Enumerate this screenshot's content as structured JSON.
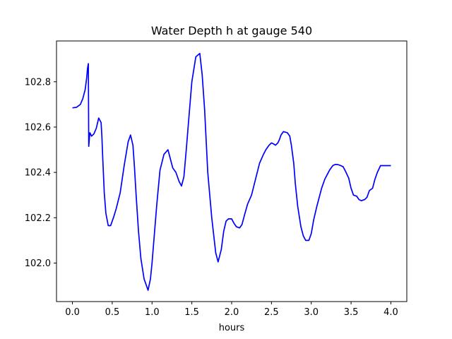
{
  "chart_data": {
    "type": "line",
    "title": "Water Depth h at gauge 540",
    "xlabel": "hours",
    "ylabel": "",
    "xlim": [
      -0.2,
      4.2
    ],
    "ylim": [
      101.83,
      102.98
    ],
    "grid": false,
    "xticks": [
      0.0,
      0.5,
      1.0,
      1.5,
      2.0,
      2.5,
      3.0,
      3.5,
      4.0
    ],
    "xtick_labels": [
      "0.0",
      "0.5",
      "1.0",
      "1.5",
      "2.0",
      "2.5",
      "3.0",
      "3.5",
      "4.0"
    ],
    "yticks": [
      102.0,
      102.2,
      102.4,
      102.6,
      102.8
    ],
    "ytick_labels": [
      "102.0",
      "102.2",
      "102.4",
      "102.6",
      "102.8"
    ],
    "colors": {
      "series": "#0000ff"
    },
    "series": [
      {
        "x": [
          0.0,
          0.05,
          0.1,
          0.13,
          0.16,
          0.18,
          0.19,
          0.2,
          0.205,
          0.215,
          0.22,
          0.24,
          0.27,
          0.3,
          0.33,
          0.36,
          0.37,
          0.38,
          0.4,
          0.42,
          0.45,
          0.48,
          0.5,
          0.52,
          0.55,
          0.6,
          0.65,
          0.7,
          0.73,
          0.76,
          0.78,
          0.8,
          0.83,
          0.86,
          0.9,
          0.95,
          0.98,
          1.0,
          1.03,
          1.06,
          1.1,
          1.15,
          1.2,
          1.23,
          1.26,
          1.3,
          1.34,
          1.37,
          1.4,
          1.43,
          1.46,
          1.5,
          1.55,
          1.6,
          1.63,
          1.66,
          1.7,
          1.75,
          1.8,
          1.83,
          1.87,
          1.9,
          1.93,
          1.96,
          2.0,
          2.03,
          2.06,
          2.1,
          2.13,
          2.16,
          2.2,
          2.25,
          2.3,
          2.35,
          2.4,
          2.43,
          2.47,
          2.5,
          2.53,
          2.55,
          2.58,
          2.6,
          2.62,
          2.65,
          2.7,
          2.73,
          2.75,
          2.78,
          2.8,
          2.83,
          2.87,
          2.9,
          2.93,
          2.97,
          3.0,
          3.03,
          3.07,
          3.1,
          3.13,
          3.17,
          3.2,
          3.23,
          3.27,
          3.3,
          3.33,
          3.37,
          3.4,
          3.43,
          3.47,
          3.5,
          3.53,
          3.57,
          3.6,
          3.63,
          3.67,
          3.7,
          3.73,
          3.77,
          3.8,
          3.83,
          3.87,
          3.9,
          3.93,
          3.97,
          4.0
        ],
        "values": [
          102.685,
          102.687,
          102.7,
          102.725,
          102.765,
          102.82,
          102.86,
          102.88,
          102.515,
          102.56,
          102.575,
          102.56,
          102.57,
          102.595,
          102.64,
          102.62,
          102.56,
          102.47,
          102.31,
          102.22,
          102.165,
          102.165,
          102.185,
          102.205,
          102.24,
          102.31,
          102.43,
          102.535,
          102.565,
          102.52,
          102.42,
          102.3,
          102.14,
          102.02,
          101.93,
          101.88,
          101.93,
          102.0,
          102.13,
          102.26,
          102.41,
          102.48,
          102.5,
          102.46,
          102.42,
          102.4,
          102.36,
          102.34,
          102.38,
          102.5,
          102.63,
          102.8,
          102.91,
          102.925,
          102.83,
          102.68,
          102.4,
          102.2,
          102.045,
          102.005,
          102.06,
          102.14,
          102.185,
          102.195,
          102.195,
          102.175,
          102.16,
          102.155,
          102.17,
          102.21,
          102.26,
          102.3,
          102.37,
          102.44,
          102.48,
          102.5,
          102.52,
          102.53,
          102.525,
          102.52,
          102.53,
          102.545,
          102.565,
          102.58,
          102.575,
          102.56,
          102.52,
          102.44,
          102.35,
          102.25,
          102.16,
          102.12,
          102.1,
          102.1,
          102.13,
          102.19,
          102.25,
          102.29,
          102.33,
          102.37,
          102.39,
          102.41,
          102.43,
          102.435,
          102.435,
          102.43,
          102.425,
          102.405,
          102.375,
          102.33,
          102.3,
          102.295,
          102.28,
          102.275,
          102.28,
          102.29,
          102.32,
          102.33,
          102.37,
          102.4,
          102.43,
          102.43,
          102.43,
          102.43,
          102.43
        ]
      }
    ]
  }
}
